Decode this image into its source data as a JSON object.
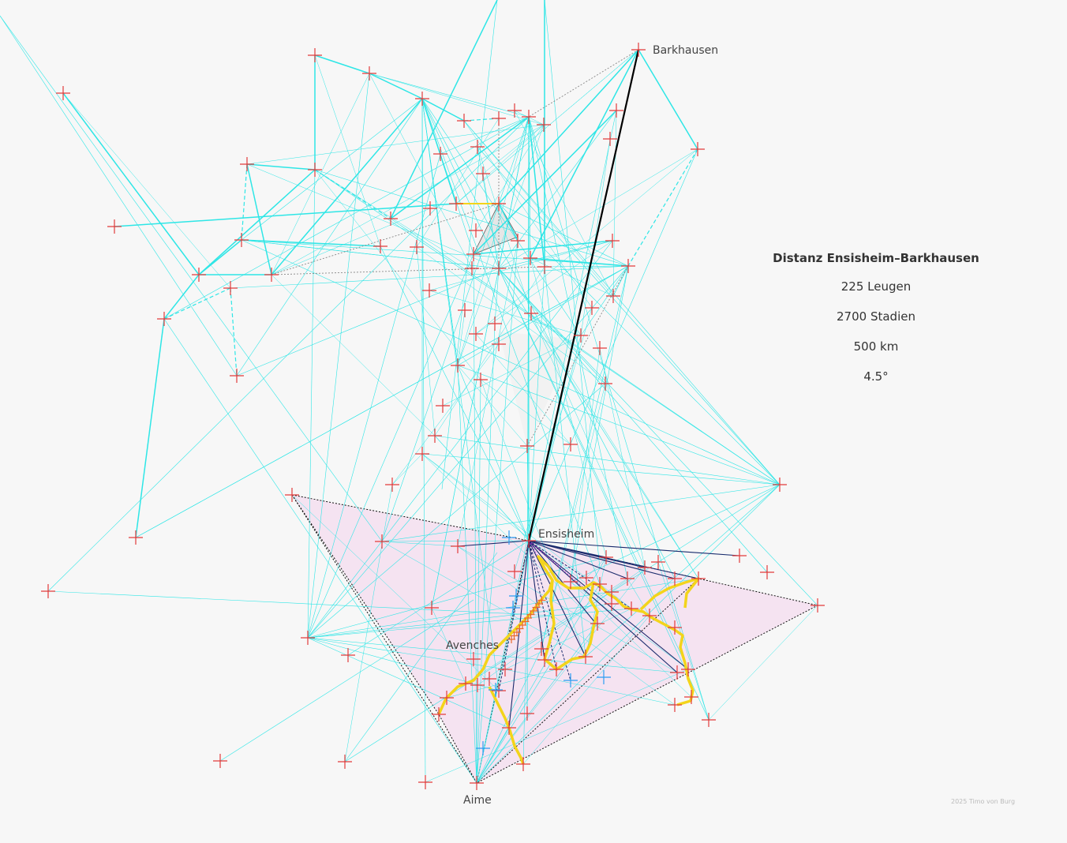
{
  "distance_panel": {
    "title": "Distanz Ensisheim–Barkhausen",
    "leagues": "225 Leugen",
    "stadia": "2700 Stadien",
    "km": "500 km",
    "degrees": "4.5°"
  },
  "places": {
    "barkhausen": "Barkhausen",
    "ensisheim": "Ensisheim",
    "avenches": "Avenches",
    "aime": "Aime"
  },
  "credit": "2025  Timo von Burg",
  "colors": {
    "marker_red": "#e23b3b",
    "marker_blue": "#2a9df4",
    "route_cyan": "#2ee6e6",
    "polygon_pink": "#f5d6ee",
    "path_yellow": "#f3d41b",
    "line_navy": "#1a2a6c"
  }
}
